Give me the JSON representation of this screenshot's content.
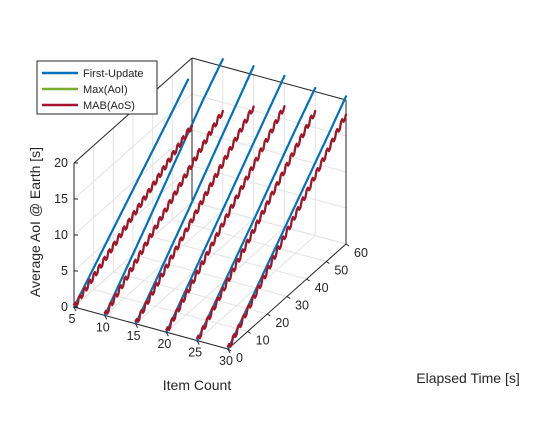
{
  "chart_data": {
    "type": "line",
    "projection": "3d",
    "title": "",
    "xlabel": "Elapsed Time [s]",
    "ylabel": "Item Count",
    "zlabel": "Average AoI @ Earth [s]",
    "xlim": [
      0,
      60
    ],
    "ylim": [
      5,
      30
    ],
    "zlim": [
      0,
      20
    ],
    "xticks": [
      "0",
      "10",
      "20",
      "30",
      "40",
      "50",
      "60"
    ],
    "yticks": [
      "5",
      "10",
      "15",
      "20",
      "25",
      "30"
    ],
    "zticks": [
      "0",
      "5",
      "10",
      "15",
      "20"
    ],
    "grid": true,
    "legend_position": "top-left",
    "series": [
      {
        "name": "First-Update",
        "color": "#0072BD",
        "lines": [
          {
            "item_count": 5,
            "x": [
              0,
              10,
              20,
              30,
              40,
              50,
              58
            ],
            "z": [
              0,
              3.0,
              6.0,
              9.0,
              12.0,
              15.0,
              17.5
            ]
          },
          {
            "item_count": 10,
            "x": [
              0,
              10,
              20,
              30,
              40,
              50,
              60
            ],
            "z": [
              0,
              3.5,
              7.0,
              10.6,
              14.2,
              17.8,
              21.0
            ]
          },
          {
            "item_count": 15,
            "x": [
              0,
              10,
              20,
              30,
              40,
              50,
              60
            ],
            "z": [
              0,
              3.4,
              6.9,
              10.4,
              14.0,
              17.6,
              21.2
            ]
          },
          {
            "item_count": 20,
            "x": [
              0,
              10,
              20,
              30,
              40,
              50,
              60
            ],
            "z": [
              0,
              3.5,
              7.0,
              10.5,
              14.0,
              17.5,
              21.0
            ]
          },
          {
            "item_count": 25,
            "x": [
              0,
              10,
              20,
              30,
              40,
              50,
              60
            ],
            "z": [
              0,
              3.4,
              6.8,
              10.2,
              13.7,
              17.2,
              20.5
            ]
          },
          {
            "item_count": 30,
            "x": [
              0,
              10,
              20,
              30,
              40,
              50,
              60
            ],
            "z": [
              0,
              3.4,
              6.8,
              10.2,
              13.6,
              17.0,
              20.5
            ]
          }
        ]
      },
      {
        "name": "Max(AoI)",
        "color": "#77AC30",
        "lines": [
          {
            "item_count": 5,
            "x": [
              0,
              10,
              20,
              30,
              40,
              50,
              60
            ],
            "z": [
              0,
              1.8,
              3.6,
              5.4,
              7.1,
              8.9,
              10.6
            ]
          },
          {
            "item_count": 10,
            "x": [
              0,
              10,
              20,
              30,
              40,
              50,
              60
            ],
            "z": [
              0,
              2.3,
              4.6,
              6.9,
              9.2,
              11.5,
              13.8
            ]
          },
          {
            "item_count": 15,
            "x": [
              0,
              10,
              20,
              30,
              40,
              50,
              60
            ],
            "z": [
              0,
              2.6,
              5.2,
              7.8,
              10.4,
              13.0,
              15.6
            ]
          },
          {
            "item_count": 20,
            "x": [
              0,
              10,
              20,
              30,
              40,
              50,
              60
            ],
            "z": [
              0,
              2.8,
              5.6,
              8.4,
              11.2,
              14.0,
              16.8
            ]
          },
          {
            "item_count": 25,
            "x": [
              0,
              10,
              20,
              30,
              40,
              50,
              60
            ],
            "z": [
              0,
              2.9,
              5.8,
              8.7,
              11.6,
              14.5,
              17.3
            ]
          },
          {
            "item_count": 30,
            "x": [
              0,
              10,
              20,
              30,
              40,
              50,
              60
            ],
            "z": [
              0,
              3.0,
              6.0,
              9.0,
              12.0,
              15.0,
              18.0
            ]
          }
        ]
      },
      {
        "name": "MAB(AoS)",
        "color": "#A2142F",
        "lines": [
          {
            "item_count": 5,
            "x": [
              0,
              10,
              20,
              30,
              40,
              50,
              60
            ],
            "z": [
              0,
              1.8,
              3.6,
              5.4,
              7.1,
              8.9,
              10.6
            ]
          },
          {
            "item_count": 10,
            "x": [
              0,
              10,
              20,
              30,
              40,
              50,
              60
            ],
            "z": [
              0,
              2.3,
              4.6,
              6.9,
              9.2,
              11.5,
              13.8
            ]
          },
          {
            "item_count": 15,
            "x": [
              0,
              10,
              20,
              30,
              40,
              50,
              60
            ],
            "z": [
              0,
              2.6,
              5.2,
              7.8,
              10.4,
              13.0,
              15.6
            ]
          },
          {
            "item_count": 20,
            "x": [
              0,
              10,
              20,
              30,
              40,
              50,
              60
            ],
            "z": [
              0,
              2.8,
              5.6,
              8.4,
              11.2,
              14.0,
              16.8
            ]
          },
          {
            "item_count": 25,
            "x": [
              0,
              10,
              20,
              30,
              40,
              50,
              60
            ],
            "z": [
              0,
              2.9,
              5.8,
              8.7,
              11.6,
              14.5,
              17.3
            ]
          },
          {
            "item_count": 30,
            "x": [
              0,
              10,
              20,
              30,
              40,
              50,
              60
            ],
            "z": [
              0,
              3.0,
              6.0,
              9.0,
              12.0,
              15.0,
              18.0
            ]
          }
        ]
      }
    ]
  }
}
